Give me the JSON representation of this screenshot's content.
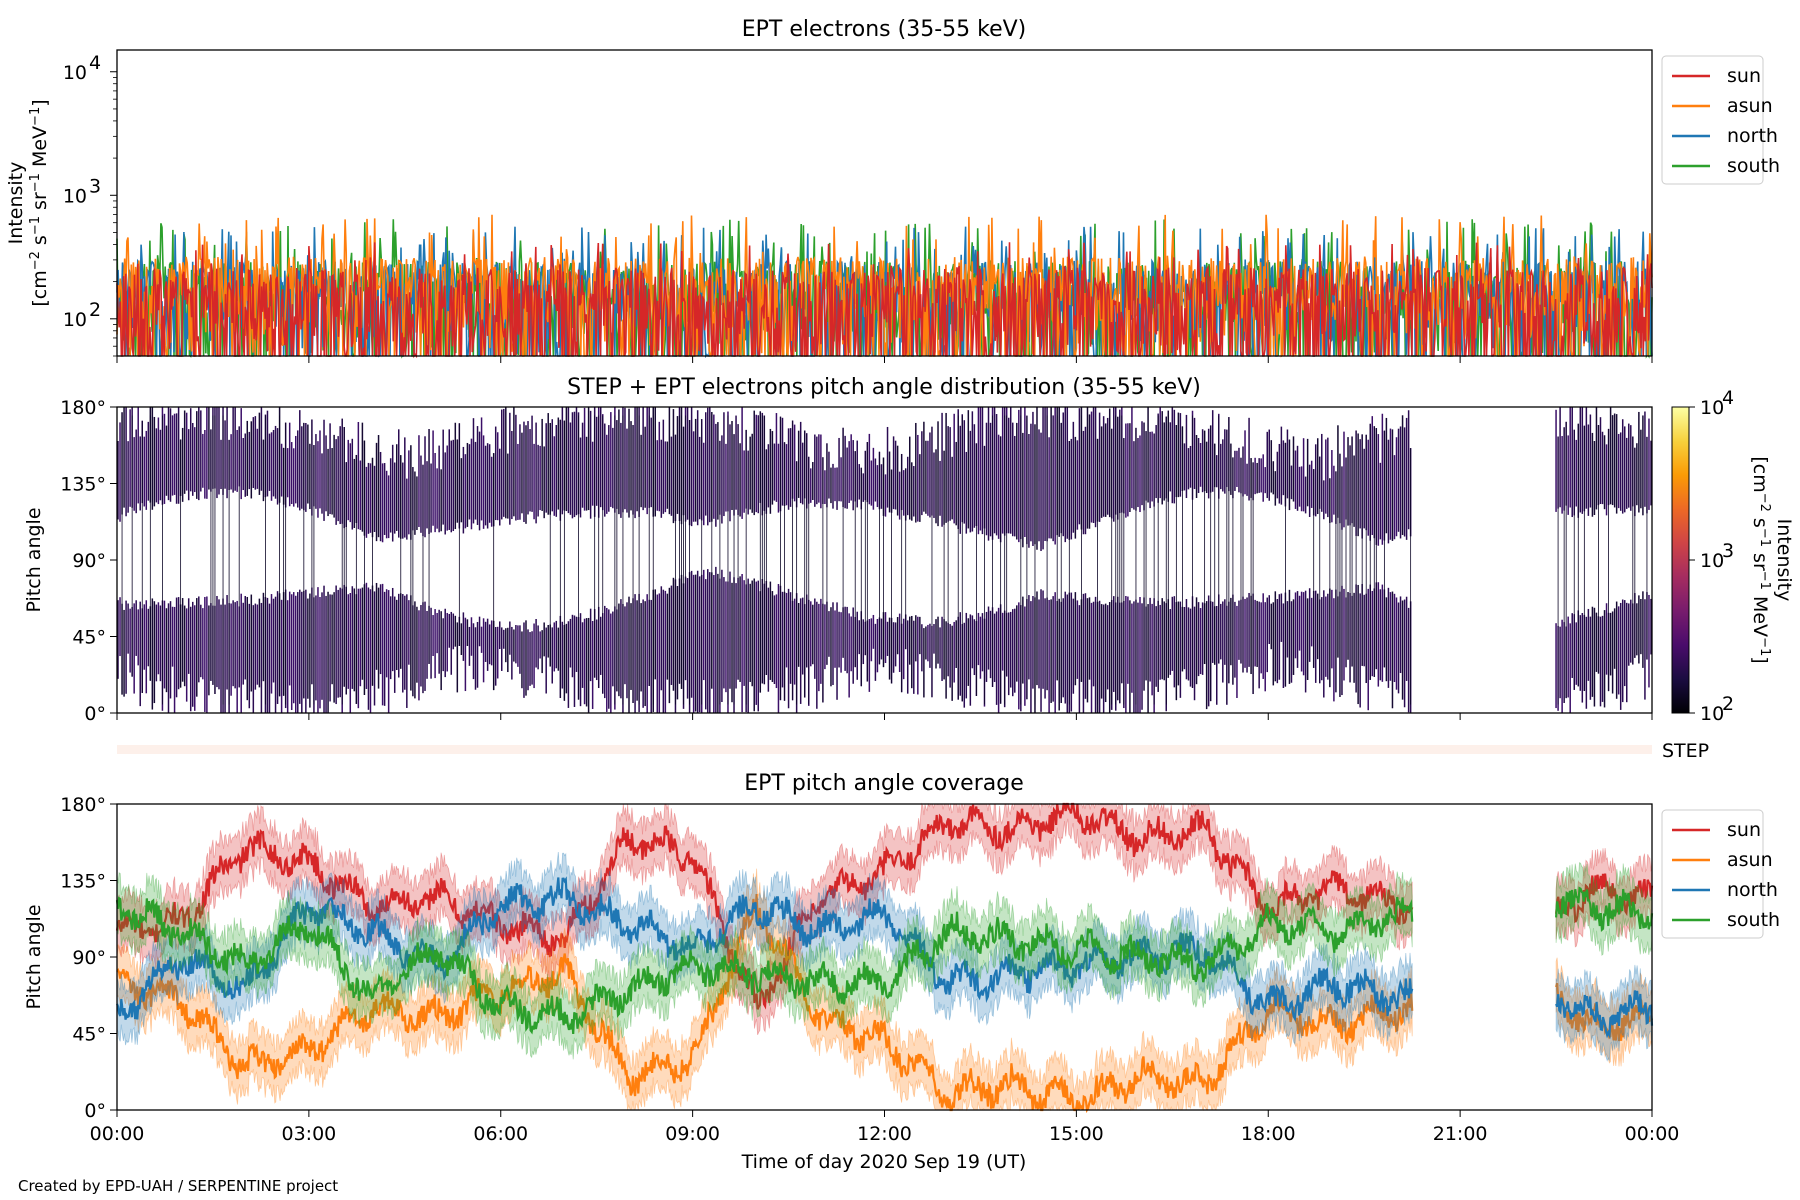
{
  "chart_data": [
    {
      "type": "line",
      "title": "EPT electrons (35-55 keV)",
      "ylabel": "Intensity",
      "ylabel_units": "[cm$^{-2}$ s$^{-1}$ sr$^{-1}$ MeV$^{-1}$]",
      "yscale": "log",
      "ylim": [
        50,
        15000
      ],
      "yticks": [
        "10",
        "10",
        "10"
      ],
      "ytick_exponents": [
        "2",
        "3",
        "4"
      ],
      "ytick_values": [
        100,
        1000,
        10000
      ],
      "legend_position": "upper right, outside plot",
      "series": [
        {
          "name": "sun",
          "color": "#d62728",
          "baseline": 65,
          "spread": 230,
          "peak_max": 420
        },
        {
          "name": "asun",
          "color": "#ff7f0e",
          "baseline": 110,
          "spread": 270,
          "peak_max": 700
        },
        {
          "name": "north",
          "color": "#1f77b4",
          "baseline": 100,
          "spread": 250,
          "peak_max": 560
        },
        {
          "name": "south",
          "color": "#2ca02c",
          "baseline": 100,
          "spread": 250,
          "peak_max": 650
        }
      ]
    },
    {
      "type": "heatmap",
      "title": "STEP + EPT electrons pitch angle distribution (35-55 keV)",
      "ylabel": "Pitch angle",
      "ylim": [
        0,
        180
      ],
      "yticks": [
        "0°",
        "45°",
        "90°",
        "135°",
        "180°"
      ],
      "ytick_values": [
        0,
        45,
        90,
        135,
        180
      ],
      "colorbar": {
        "label": "Intensity",
        "units": "[cm$^{-2}$ s$^{-1}$ sr$^{-1}$ MeV$^{-1}$]",
        "scale": "log",
        "range": [
          100,
          10000
        ],
        "ticks": [
          "10",
          "10",
          "10"
        ],
        "tick_exponents": [
          "2",
          "3",
          "4"
        ],
        "colormap": "inferno",
        "colors": [
          "#000004",
          "#1b0c41",
          "#4a0c6b",
          "#781c6d",
          "#a52c60",
          "#cf4446",
          "#ed6925",
          "#fb9b06",
          "#f7d13d",
          "#fcffa4"
        ]
      },
      "data_gap_hours": [
        20.25,
        22.5
      ],
      "dominant_color": "#2a0b52"
    },
    {
      "type": "line",
      "title": "EPT pitch angle coverage",
      "ylabel": "Pitch angle",
      "ylim": [
        0,
        180
      ],
      "yticks": [
        "0°",
        "45°",
        "90°",
        "135°",
        "180°"
      ],
      "ytick_values": [
        0,
        45,
        90,
        135,
        180
      ],
      "legend_position": "upper right, outside plot",
      "shaded_band_deg": 15,
      "data_gap_hours": [
        20.25,
        22.5
      ],
      "x_hours": [
        0,
        1,
        2,
        3,
        4,
        5,
        6,
        7,
        8,
        9,
        10,
        11,
        12,
        13,
        14,
        15,
        16,
        17,
        18,
        19,
        20.2,
        22.6,
        23,
        24
      ],
      "series": [
        {
          "name": "sun",
          "color": "#d62728",
          "values": [
            105,
            110,
            155,
            145,
            120,
            125,
            110,
            100,
            160,
            150,
            60,
            125,
            140,
            170,
            165,
            175,
            160,
            165,
            120,
            130,
            120,
            115,
            130,
            125
          ]
        },
        {
          "name": "asun",
          "color": "#ff7f0e",
          "values": [
            75,
            65,
            25,
            35,
            60,
            55,
            70,
            80,
            20,
            30,
            120,
            55,
            40,
            10,
            15,
            5,
            20,
            15,
            60,
            50,
            60,
            65,
            50,
            55
          ]
        },
        {
          "name": "north",
          "color": "#1f77b4",
          "values": [
            55,
            90,
            70,
            120,
            105,
            85,
            120,
            125,
            110,
            95,
            120,
            105,
            115,
            75,
            80,
            85,
            90,
            95,
            60,
            75,
            65,
            65,
            55,
            60
          ]
        },
        {
          "name": "south",
          "color": "#2ca02c",
          "values": [
            120,
            105,
            85,
            110,
            65,
            95,
            60,
            55,
            70,
            85,
            80,
            75,
            75,
            105,
            100,
            95,
            90,
            85,
            110,
            105,
            115,
            125,
            120,
            115
          ]
        }
      ]
    }
  ],
  "strip_label": "STEP",
  "xaxis": {
    "label": "Time of day 2020 Sep 19 (UT)",
    "range_hours": [
      0,
      24
    ],
    "ticks": [
      "00:00",
      "03:00",
      "06:00",
      "09:00",
      "12:00",
      "15:00",
      "18:00",
      "21:00",
      "00:00"
    ],
    "tick_values": [
      0,
      3,
      6,
      9,
      12,
      15,
      18,
      21,
      24
    ]
  },
  "footer": "Created by EPD-UAH / SERPENTINE project"
}
